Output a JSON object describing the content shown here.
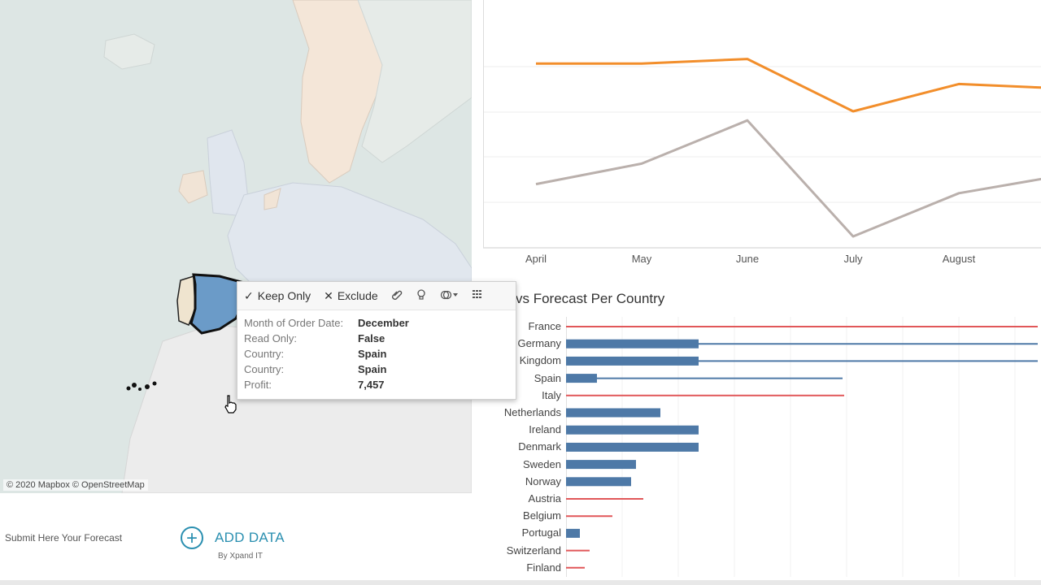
{
  "map": {
    "attribution": "© 2020 Mapbox © OpenStreetMap",
    "highlight_color": "#6b9bc8"
  },
  "tooltip": {
    "keep_only": "Keep Only",
    "exclude": "Exclude",
    "rows": [
      {
        "key": "Month of Order Date:",
        "value": "December"
      },
      {
        "key": "Read Only:",
        "value": "False"
      },
      {
        "key": "Country:",
        "value": "Spain"
      },
      {
        "key": "Country:",
        "value": "Spain"
      },
      {
        "key": "Profit:",
        "value": "7,457"
      }
    ],
    "icons": [
      "check-icon",
      "close-icon",
      "paperclip-icon",
      "lightbulb-icon",
      "group-icon",
      "grid-icon"
    ]
  },
  "footer": {
    "submit_label": "Submit Here Your Forecast",
    "add_data_label": "ADD DATA",
    "add_data_by": "By Xpand IT"
  },
  "chart_data": [
    {
      "type": "line",
      "x": [
        "April",
        "May",
        "June",
        "July",
        "August",
        ""
      ],
      "series": [
        {
          "color": "#f28e2b",
          "values": [
            0.81,
            0.81,
            0.83,
            0.6,
            0.72,
            0.7
          ]
        },
        {
          "color": "#bab0ac",
          "values": [
            0.28,
            0.37,
            0.56,
            0.05,
            0.24,
            0.32
          ]
        }
      ],
      "grid": true
    },
    {
      "type": "bar",
      "title": "vs Forecast Per Country",
      "categories": [
        "France",
        "Germany",
        "Kingdom",
        "Spain",
        "Italy",
        "Netherlands",
        "Ireland",
        "Denmark",
        "Sweden",
        "Norway",
        "Austria",
        "Belgium",
        "Portugal",
        "Switzerland",
        "Finland"
      ],
      "bars": [
        0,
        163,
        163,
        38,
        0,
        116,
        163,
        163,
        86,
        80,
        0,
        0,
        17,
        0,
        0
      ],
      "target_lines": [
        {
          "value": 580,
          "color": "#e15759"
        },
        {
          "value": 580,
          "color": "#4e79a7"
        },
        {
          "value": 580,
          "color": "#4e79a7"
        },
        {
          "value": 340,
          "color": "#4e79a7"
        },
        {
          "value": 342,
          "color": "#e15759"
        },
        {
          "value": 0,
          "color": "#e15759"
        },
        {
          "value": 0,
          "color": "#e15759"
        },
        {
          "value": 0,
          "color": "#e15759"
        },
        {
          "value": 0,
          "color": "#e15759"
        },
        {
          "value": 0,
          "color": "#e15759"
        },
        {
          "value": 95,
          "color": "#e15759"
        },
        {
          "value": 57,
          "color": "#e15759"
        },
        {
          "value": 0,
          "color": "#e15759"
        },
        {
          "value": 29,
          "color": "#e15759"
        },
        {
          "value": 23,
          "color": "#e15759"
        }
      ],
      "bar_color": "#4e79a7"
    }
  ]
}
